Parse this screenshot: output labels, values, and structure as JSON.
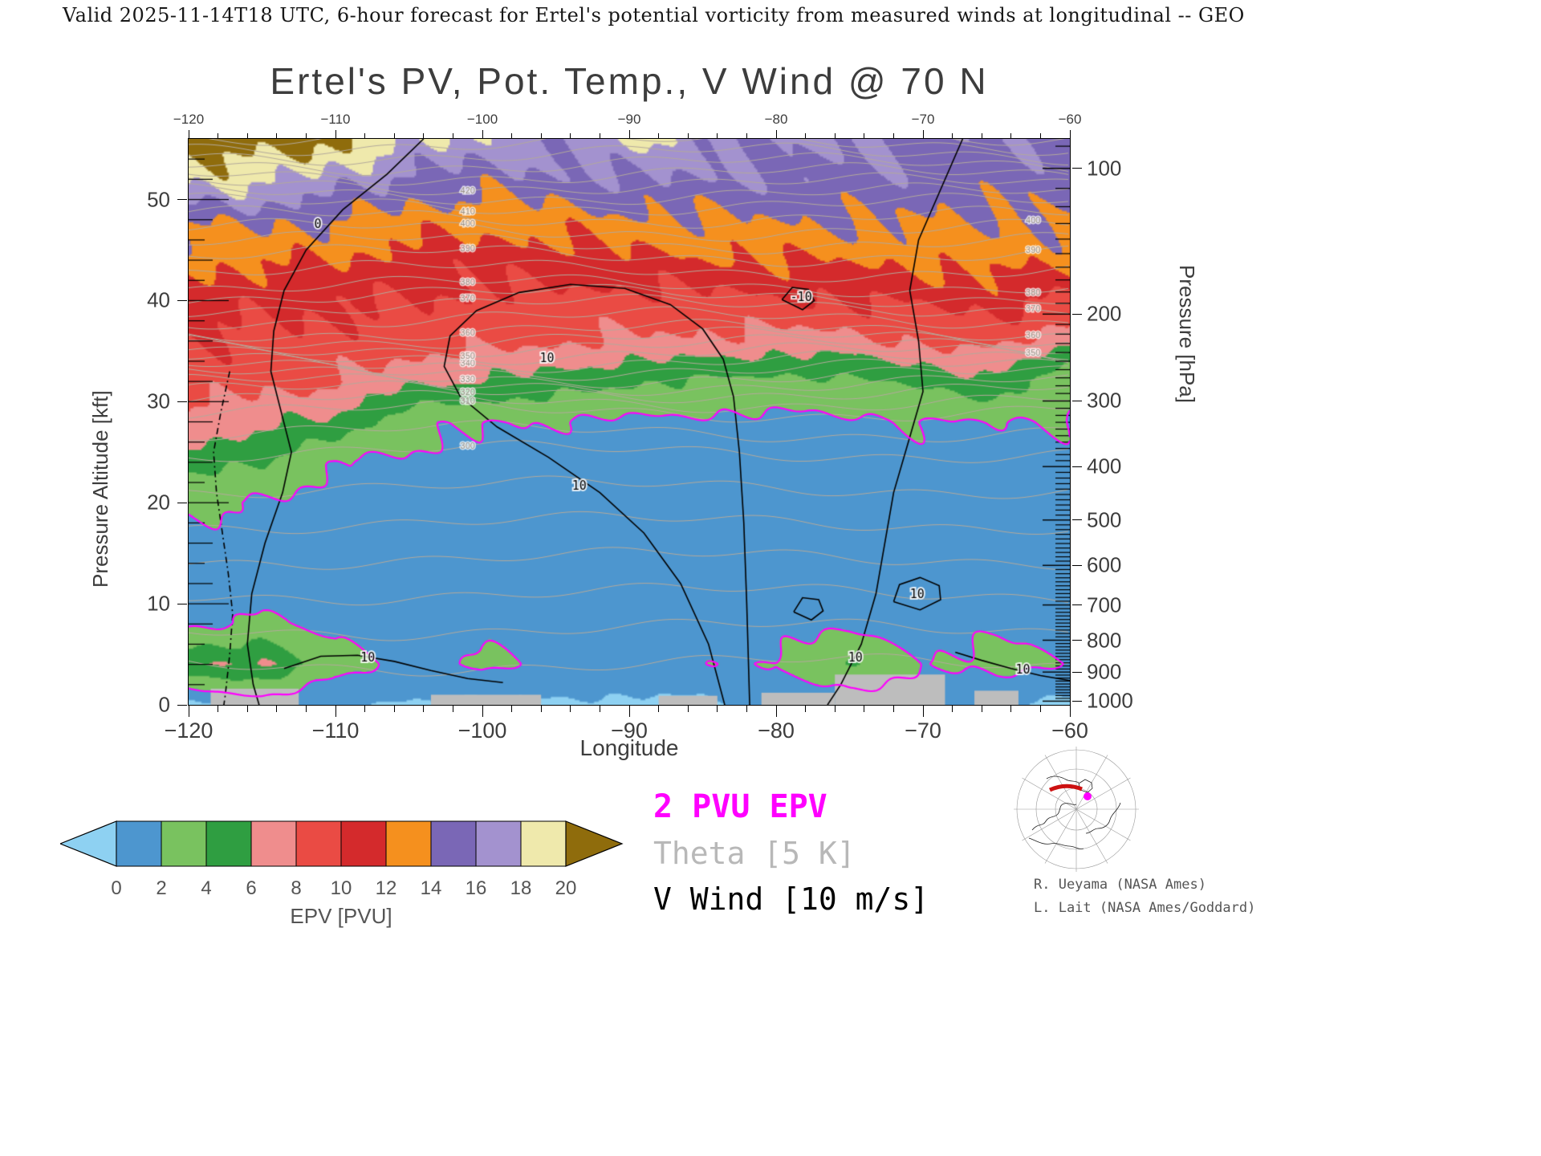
{
  "header": {
    "valid_line": "Valid 2025-11-14T18 UTC, 6-hour forecast for Ertel's potential vorticity from measured winds at longitudinal -- GEO"
  },
  "title": "Ertel's PV, Pot. Temp., V Wind @ 70 N",
  "axes": {
    "x": {
      "label": "Longitude",
      "min": -120,
      "max": -60,
      "major": [
        -120,
        -110,
        -100,
        -90,
        -80,
        -70,
        -60
      ],
      "minor_step": 2
    },
    "y_left": {
      "label": "Pressure Altitude [kft]",
      "min": 0,
      "max": 56,
      "major": [
        0,
        10,
        20,
        30,
        40,
        50
      ],
      "minor_step": 2
    },
    "y_right": {
      "label": "Pressure [hPa]",
      "major": [
        100,
        200,
        300,
        400,
        500,
        600,
        700,
        800,
        900,
        1000
      ]
    }
  },
  "legend": {
    "pv": "2 PVU EPV",
    "pv_color": "#ff00ff",
    "theta": "Theta [5 K]",
    "theta_color": "#b8b8b8",
    "wind": "V Wind [10 m/s]",
    "wind_color": "#000000"
  },
  "colorbar": {
    "label": "EPV [PVU]",
    "tick_values": [
      0,
      2,
      4,
      6,
      8,
      10,
      12,
      14,
      16,
      18,
      20
    ],
    "under_color": "#8ed1f2",
    "over_color": "#8f6c0c",
    "colors": [
      "#4d96cf",
      "#79c25f",
      "#2f9e41",
      "#ef8d8d",
      "#ea4b44",
      "#d42a2c",
      "#f5901e",
      "#7a67b6",
      "#a392cf",
      "#efe9ac"
    ]
  },
  "map": {
    "section_color": "#cc1111",
    "marker_color": "#ff00ff"
  },
  "credits": {
    "line1": "R. Ueyama (NASA Ames)",
    "line2": "L. Lait (NASA Ames/Goddard)"
  },
  "chart_data": {
    "type": "heatmap",
    "title": "Ertel's PV, Pot. Temp., V Wind @ 70 N",
    "xlabel": "Longitude",
    "ylabel_left": "Pressure Altitude [kft]",
    "ylabel_right": "Pressure [hPa]",
    "xlim": [
      -120,
      -60
    ],
    "ylim_kft": [
      0,
      56
    ],
    "epv_units": "PVU",
    "epv_grid": {
      "note": "Ertel potential vorticity (PVU); columns west-to-east, each column bottom(0 kft) to top(56 kft)",
      "lons": [
        -120,
        -115,
        -110,
        -105,
        -100,
        -95,
        -90,
        -85,
        -80,
        -75,
        -70,
        -65,
        -60
      ],
      "alts_kft": [
        0,
        4,
        8,
        12,
        16,
        20,
        24,
        28,
        32,
        36,
        40,
        44,
        48,
        52,
        56
      ],
      "values": [
        [
          -0.5,
          5.5,
          1.6,
          1.2,
          1.6,
          2.2,
          5.0,
          7.5,
          9.0,
          9.8,
          10.8,
          12.5,
          14.5,
          18.5,
          21.5
        ],
        [
          0.8,
          6.5,
          2.2,
          1.1,
          1.4,
          1.9,
          4.0,
          6.5,
          8.6,
          9.6,
          10.5,
          12.2,
          14.5,
          18.5,
          21.5
        ],
        [
          0.3,
          2.6,
          1.4,
          1.0,
          1.2,
          1.5,
          1.9,
          5.5,
          8.2,
          9.4,
          10.2,
          12.0,
          14.0,
          17.0,
          20.5
        ],
        [
          -0.2,
          1.6,
          1.1,
          0.7,
          1.0,
          1.3,
          1.7,
          2.6,
          6.5,
          9.0,
          10.0,
          11.2,
          13.0,
          15.5,
          18.5
        ],
        [
          -0.4,
          2.4,
          1.2,
          0.6,
          0.8,
          1.2,
          1.5,
          2.1,
          5.8,
          8.6,
          9.6,
          10.8,
          12.5,
          15.0,
          17.5
        ],
        [
          -0.2,
          1.4,
          1.0,
          0.55,
          0.6,
          1.1,
          1.4,
          1.9,
          5.2,
          8.2,
          9.4,
          11.0,
          13.0,
          15.5,
          16.5
        ],
        [
          -0.4,
          1.5,
          1.1,
          0.55,
          1.0,
          1.1,
          1.3,
          1.7,
          4.2,
          7.8,
          9.2,
          11.5,
          13.5,
          16.0,
          18.5
        ],
        [
          -0.3,
          1.6,
          1.2,
          0.7,
          0.65,
          1.1,
          1.3,
          1.6,
          3.8,
          7.6,
          9.4,
          11.8,
          13.8,
          15.8,
          16.5
        ],
        [
          0.9,
          2.2,
          1.4,
          1.1,
          1.0,
          1.1,
          1.3,
          1.6,
          3.4,
          7.2,
          9.8,
          12.0,
          14.0,
          15.5,
          16.0
        ],
        [
          1.2,
          3.8,
          1.6,
          1.1,
          1.0,
          1.1,
          1.3,
          1.7,
          3.6,
          7.4,
          10.0,
          12.2,
          14.2,
          15.5,
          16.2
        ],
        [
          0.8,
          2.0,
          1.4,
          1.1,
          1.1,
          1.2,
          1.4,
          1.9,
          4.6,
          8.2,
          10.4,
          12.4,
          14.0,
          15.2,
          15.8
        ],
        [
          0.2,
          2.8,
          1.5,
          1.1,
          1.1,
          1.3,
          1.6,
          2.1,
          5.4,
          8.8,
          10.8,
          12.6,
          13.8,
          14.8,
          15.4
        ],
        [
          -0.4,
          1.8,
          1.3,
          1.1,
          1.2,
          1.4,
          1.6,
          1.9,
          2.4,
          6.5,
          9.5,
          12.5,
          14.0,
          15.0,
          15.6
        ]
      ]
    },
    "pv_contour_level": 2,
    "theta_surfaces": {
      "interval_K": 5,
      "levels_range": [
        270,
        450
      ],
      "color": "#b4aa9c",
      "label_color": "#9a9186",
      "knots_theta": [
        255,
        260,
        270,
        280,
        290,
        300,
        310,
        320,
        330,
        340,
        350,
        360,
        370,
        380,
        390,
        400,
        410,
        420,
        430,
        440,
        450
      ],
      "knots_alt_kft": [
        -6,
        -2,
        4,
        11,
        18,
        25,
        29,
        31,
        32.5,
        34,
        35.5,
        37,
        39.5,
        41.5,
        44.5,
        47,
        49.5,
        51.5,
        53.5,
        55.5,
        57.5
      ],
      "labels": {
        "left_lon": -101,
        "left_levels": [
          300,
          310,
          320,
          330,
          340,
          350,
          360,
          370,
          380,
          390,
          400,
          410,
          420
        ],
        "right_lon": -62.5,
        "right_levels": [
          350,
          360,
          370,
          380,
          390,
          400
        ]
      }
    },
    "wind_contours": [
      {
        "dashed": false,
        "labels": [
          {
            "text": "0",
            "at": [
              -111.2,
              47.5
            ]
          }
        ],
        "points": [
          [
            -104,
            56
          ],
          [
            -106.5,
            52.5
          ],
          [
            -109.5,
            49
          ],
          [
            -112,
            45
          ],
          [
            -113.5,
            41
          ],
          [
            -114.2,
            37
          ],
          [
            -114.4,
            33
          ],
          [
            -113.7,
            29
          ],
          [
            -113,
            25
          ],
          [
            -113.6,
            21
          ],
          [
            -114.8,
            16
          ],
          [
            -115.7,
            11
          ],
          [
            -116,
            6
          ],
          [
            -115.6,
            2
          ],
          [
            -115.2,
            0
          ]
        ]
      },
      {
        "dashed": true,
        "labels": [],
        "points": [
          [
            -117.2,
            33
          ],
          [
            -117.8,
            29
          ],
          [
            -118.3,
            25
          ],
          [
            -118.1,
            21
          ],
          [
            -117.7,
            17
          ],
          [
            -117.3,
            13
          ],
          [
            -117.0,
            9
          ],
          [
            -117.2,
            5
          ],
          [
            -117.5,
            1
          ],
          [
            -117.6,
            0
          ]
        ]
      },
      {
        "dashed": false,
        "labels": [
          {
            "text": "10",
            "at": [
              -93.4,
              21.6
            ]
          },
          {
            "text": "10",
            "at": [
              -95.6,
              34.2
            ]
          }
        ],
        "points": [
          [
            -83.5,
            0
          ],
          [
            -84.6,
            6
          ],
          [
            -86.5,
            12
          ],
          [
            -89,
            17
          ],
          [
            -92,
            21
          ],
          [
            -95.5,
            24.5
          ],
          [
            -99,
            27.5
          ],
          [
            -101.5,
            30.5
          ],
          [
            -102.6,
            33.5
          ],
          [
            -102.2,
            36.5
          ],
          [
            -100.4,
            39
          ],
          [
            -97.5,
            40.8
          ],
          [
            -94,
            41.6
          ],
          [
            -90.3,
            41.2
          ],
          [
            -87.2,
            39.6
          ],
          [
            -85,
            37.2
          ],
          [
            -83.6,
            34.2
          ],
          [
            -82.9,
            30.5
          ],
          [
            -82.5,
            25
          ],
          [
            -82.2,
            18
          ],
          [
            -82.0,
            10
          ],
          [
            -81.8,
            0
          ]
        ]
      },
      {
        "dashed": false,
        "labels": [
          {
            "text": "-10",
            "at": [
              -78.3,
              40.3
            ]
          }
        ],
        "points": [
          [
            -79.6,
            40.1
          ],
          [
            -78.9,
            41.3
          ],
          [
            -77.8,
            41.1
          ],
          [
            -77.4,
            40.0
          ],
          [
            -78.2,
            39.1
          ],
          [
            -79.6,
            40.1
          ]
        ]
      },
      {
        "dashed": false,
        "labels": [
          {
            "text": "10",
            "at": [
              -74.6,
              4.6
            ]
          }
        ],
        "points": [
          [
            -67.3,
            56
          ],
          [
            -68.8,
            51
          ],
          [
            -70.3,
            46
          ],
          [
            -70.9,
            41
          ],
          [
            -70.3,
            36
          ],
          [
            -70.0,
            31
          ],
          [
            -71.0,
            26
          ],
          [
            -72.0,
            21
          ],
          [
            -72.6,
            16
          ],
          [
            -73.2,
            11
          ],
          [
            -74.2,
            6
          ],
          [
            -75.6,
            2
          ],
          [
            -76.5,
            0
          ]
        ]
      },
      {
        "dashed": false,
        "labels": [
          {
            "text": "10",
            "at": [
              -70.4,
              10.9
            ]
          }
        ],
        "points": [
          [
            -72.0,
            10.2
          ],
          [
            -71.6,
            11.9
          ],
          [
            -70.2,
            12.6
          ],
          [
            -68.9,
            11.8
          ],
          [
            -68.8,
            10.4
          ],
          [
            -70.2,
            9.4
          ],
          [
            -72.0,
            10.2
          ]
        ]
      },
      {
        "dashed": false,
        "labels": [],
        "points": [
          [
            -78.8,
            9.2
          ],
          [
            -78.2,
            10.6
          ],
          [
            -77.1,
            10.4
          ],
          [
            -76.8,
            9.3
          ],
          [
            -77.6,
            8.4
          ],
          [
            -78.8,
            9.2
          ]
        ]
      },
      {
        "dashed": false,
        "labels": [
          {
            "text": "10",
            "at": [
              -107.8,
              4.6
            ]
          }
        ],
        "points": [
          [
            -113.5,
            3.6
          ],
          [
            -111,
            4.8
          ],
          [
            -108.5,
            4.9
          ],
          [
            -106,
            4.3
          ],
          [
            -103.5,
            3.4
          ],
          [
            -101,
            2.6
          ],
          [
            -98.6,
            2.2
          ]
        ]
      },
      {
        "dashed": false,
        "labels": [
          {
            "text": "10",
            "at": [
              -63.2,
              3.4
            ]
          }
        ],
        "points": [
          [
            -67.8,
            5.2
          ],
          [
            -66,
            4.4
          ],
          [
            -64,
            3.6
          ],
          [
            -62,
            2.9
          ],
          [
            -60,
            2.4
          ]
        ]
      }
    ],
    "terrain": [
      {
        "lon_from": -118.5,
        "lon_to": -112.5,
        "height_kft": 1.6
      },
      {
        "lon_from": -103.5,
        "lon_to": -96.0,
        "height_kft": 1.0
      },
      {
        "lon_from": -88.0,
        "lon_to": -84.0,
        "height_kft": 0.9
      },
      {
        "lon_from": -81.0,
        "lon_to": -76.0,
        "height_kft": 1.2
      },
      {
        "lon_from": -76.0,
        "lon_to": -68.5,
        "height_kft": 3.0
      },
      {
        "lon_from": -66.5,
        "lon_to": -63.5,
        "height_kft": 1.4
      }
    ],
    "terrain_color": "#bdbdbd"
  }
}
